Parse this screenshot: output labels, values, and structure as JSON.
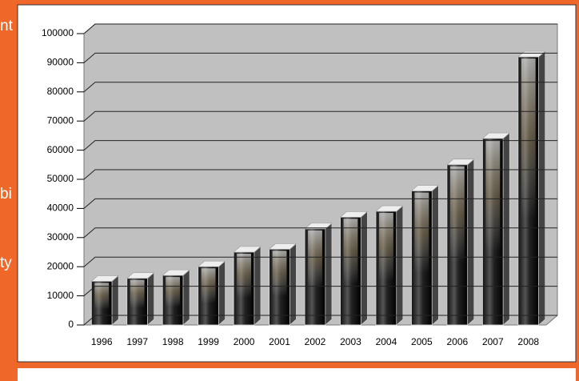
{
  "background_text": [
    "nt",
    "bi",
    "ty"
  ],
  "chart_data": {
    "type": "bar",
    "categories": [
      "1996",
      "1997",
      "1998",
      "1999",
      "2000",
      "2001",
      "2002",
      "2003",
      "2004",
      "2005",
      "2006",
      "2007",
      "2008"
    ],
    "values": [
      15000,
      16000,
      17000,
      20000,
      25000,
      26000,
      33000,
      37000,
      39000,
      46000,
      55000,
      64000,
      92000
    ],
    "color": "#2a2a2a",
    "ylim": [
      0,
      100000
    ],
    "yticks": [
      0,
      10000,
      20000,
      30000,
      40000,
      50000,
      60000,
      70000,
      80000,
      90000,
      100000
    ],
    "grid": true
  }
}
